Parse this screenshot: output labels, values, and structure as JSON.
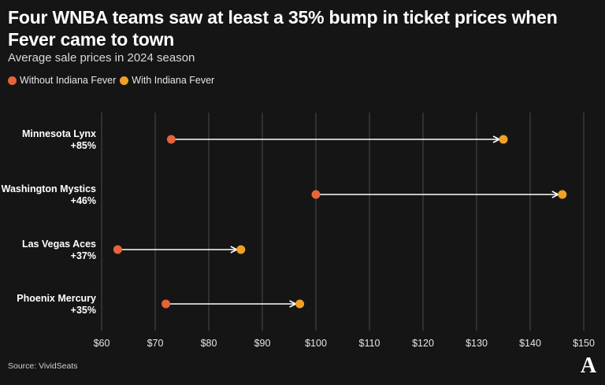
{
  "title": "Four WNBA teams saw at least a 35% bump in ticket prices when Fever came to town",
  "subtitle": "Average sale prices in 2024 season",
  "source": "Source: VividSeats",
  "logo_text": "A",
  "colors": {
    "without": "#e8623a",
    "with": "#f2a024",
    "background": "#151515",
    "grid": "#4a4a4a",
    "arrow": "#ffffff"
  },
  "chart_data": {
    "type": "dumbbell",
    "title": "Four WNBA teams saw at least a 35% bump in ticket prices when Fever came to town",
    "subtitle": "Average sale prices in 2024 season",
    "legend_position": "top-left",
    "grid": "vertical",
    "xlim": [
      60,
      150
    ],
    "x_ticks": [
      60,
      70,
      80,
      90,
      100,
      110,
      120,
      130,
      140,
      150
    ],
    "x_tick_labels": [
      "$60",
      "$70",
      "$80",
      "$90",
      "$100",
      "$110",
      "$120",
      "$130",
      "$140",
      "$150"
    ],
    "series": [
      {
        "name": "Without Indiana Fever",
        "color": "#e8623a"
      },
      {
        "name": "With Indiana Fever",
        "color": "#f2a024"
      }
    ],
    "categories": [
      "Minnesota Lynx",
      "Washington Mystics",
      "Las Vegas Aces",
      "Phoenix Mercury"
    ],
    "pct_labels": [
      "+85%",
      "+46%",
      "+37%",
      "+35%"
    ],
    "without_values": [
      73,
      100,
      63,
      72
    ],
    "with_values": [
      135,
      146,
      86,
      97
    ]
  }
}
